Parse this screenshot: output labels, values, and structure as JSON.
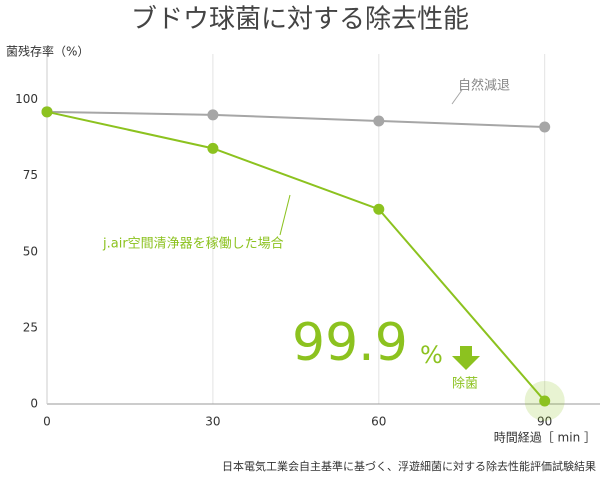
{
  "chart_data": {
    "type": "line",
    "title": "ブドウ球菌に対する除去性能",
    "y_label": "菌残存率（%）",
    "x_label": "時間経過［ min ］",
    "footnote": "日本電気工業会自主基準に基づく、浮遊細菌に対する除去性能評価試験結果",
    "x": [
      0,
      30,
      60,
      90
    ],
    "series": [
      {
        "name": "自然減退",
        "color": "#a6a6a6",
        "values": [
          96,
          95,
          93,
          91
        ]
      },
      {
        "name": "j.air空間清浄器を稼働した場合",
        "color": "#8cc21f",
        "values": [
          96,
          84,
          64,
          1
        ]
      }
    ],
    "annotation": {
      "number": "99.9",
      "unit": "%",
      "label": "除菌"
    },
    "xlim": [
      0,
      100
    ],
    "ylim": [
      0,
      115
    ],
    "xticks": [
      0,
      30,
      60,
      90
    ],
    "yticks": [
      0,
      25,
      50,
      75,
      100
    ],
    "grid": true
  }
}
